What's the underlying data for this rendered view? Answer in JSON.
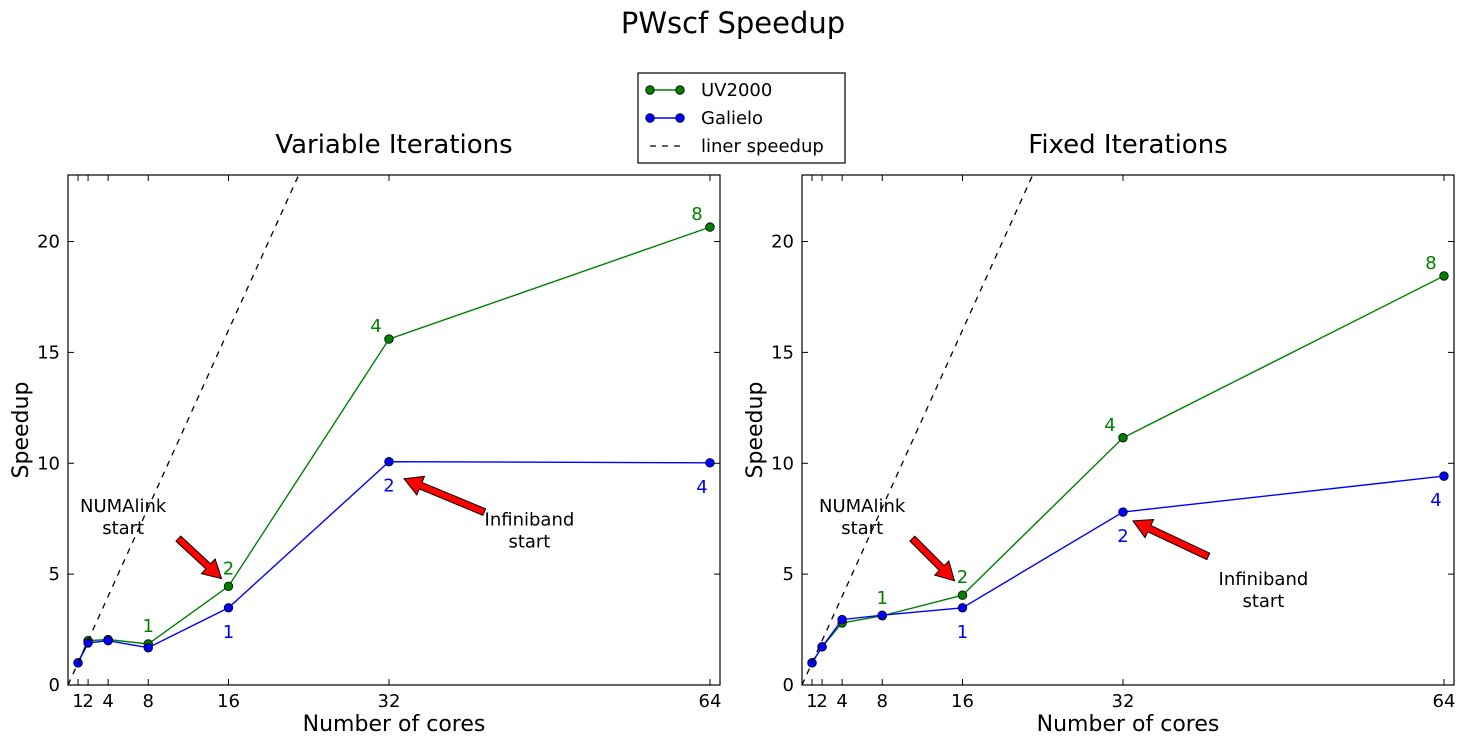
{
  "figure": {
    "title": "PWscf Speedup"
  },
  "legend": {
    "entries": [
      {
        "label": "UV2000",
        "color": "#007f00",
        "style": "line-marker"
      },
      {
        "label": "Galielo",
        "color": "#0000ff",
        "style": "line-marker"
      },
      {
        "label": "liner speedup",
        "color": "#000000",
        "style": "dashed"
      }
    ]
  },
  "chart_data": [
    {
      "type": "line",
      "title": "Variable Iterations",
      "xlabel": "Number of cores",
      "ylabel": "Speedup",
      "xlim": [
        0,
        65
      ],
      "ylim": [
        0,
        23
      ],
      "xticks": [
        1,
        2,
        4,
        8,
        16,
        32,
        64
      ],
      "xtick_labels": [
        "1",
        "2",
        "4",
        "8",
        "16",
        "32",
        "64"
      ],
      "yticks": [
        0,
        5,
        10,
        15,
        20
      ],
      "grid": false,
      "series": [
        {
          "name": "UV2000",
          "color": "#007f00",
          "x": [
            1,
            2,
            4,
            8,
            16,
            32,
            64
          ],
          "y": [
            1.0,
            2.0,
            2.05,
            1.85,
            4.45,
            15.6,
            20.65
          ],
          "point_labels": [
            {
              "x": 8,
              "text": "1",
              "position": "above"
            },
            {
              "x": 16,
              "text": "2",
              "position": "above"
            },
            {
              "x": 32,
              "text": "4",
              "position": "above-left"
            },
            {
              "x": 64,
              "text": "8",
              "position": "above-left"
            }
          ]
        },
        {
          "name": "Galielo",
          "color": "#0000ff",
          "x": [
            1,
            2,
            4,
            8,
            16,
            32,
            64
          ],
          "y": [
            1.0,
            1.9,
            2.0,
            1.68,
            3.48,
            10.07,
            10.02
          ],
          "point_labels": [
            {
              "x": 16,
              "text": "1",
              "position": "below"
            },
            {
              "x": 32,
              "text": "2",
              "position": "below"
            },
            {
              "x": 64,
              "text": "4",
              "position": "below-left"
            }
          ]
        },
        {
          "name": "liner speedup",
          "color": "#000000",
          "style": "dashed",
          "x": [
            0,
            23
          ],
          "y": [
            0,
            23
          ]
        }
      ],
      "annotations": [
        {
          "text_lines": [
            "NUMAlink",
            "start"
          ],
          "text_at": [
            5.5,
            7.8
          ],
          "arrow_from": [
            11,
            6.6
          ],
          "arrow_to": [
            15.3,
            4.8
          ]
        },
        {
          "text_lines": [
            "Infiniband",
            "start"
          ],
          "text_at": [
            46,
            7.2
          ],
          "arrow_from": [
            41.5,
            7.8
          ],
          "arrow_to": [
            33.5,
            9.3
          ]
        }
      ]
    },
    {
      "type": "line",
      "title": "Fixed Iterations",
      "xlabel": "Number of cores",
      "ylabel": "Speedup",
      "xlim": [
        0,
        65
      ],
      "ylim": [
        0,
        23
      ],
      "xticks": [
        1,
        2,
        4,
        8,
        16,
        32,
        64
      ],
      "xtick_labels": [
        "1",
        "2",
        "4",
        "8",
        "16",
        "32",
        "64"
      ],
      "yticks": [
        0,
        5,
        10,
        15,
        20
      ],
      "grid": false,
      "series": [
        {
          "name": "UV2000",
          "color": "#007f00",
          "x": [
            1,
            2,
            4,
            8,
            16,
            32,
            64
          ],
          "y": [
            1.0,
            1.72,
            2.8,
            3.12,
            4.05,
            11.15,
            18.45
          ],
          "point_labels": [
            {
              "x": 8,
              "text": "1",
              "position": "above"
            },
            {
              "x": 16,
              "text": "2",
              "position": "above"
            },
            {
              "x": 32,
              "text": "4",
              "position": "above-left"
            },
            {
              "x": 64,
              "text": "8",
              "position": "above-left"
            }
          ]
        },
        {
          "name": "Galielo",
          "color": "#0000ff",
          "x": [
            1,
            2,
            4,
            8,
            16,
            32,
            64
          ],
          "y": [
            1.0,
            1.72,
            2.95,
            3.15,
            3.48,
            7.8,
            9.42
          ],
          "point_labels": [
            {
              "x": 16,
              "text": "1",
              "position": "below"
            },
            {
              "x": 32,
              "text": "2",
              "position": "below"
            },
            {
              "x": 64,
              "text": "4",
              "position": "below-left"
            }
          ]
        },
        {
          "name": "liner speedup",
          "color": "#000000",
          "style": "dashed",
          "x": [
            0,
            23
          ],
          "y": [
            0,
            23
          ]
        }
      ],
      "annotations": [
        {
          "text_lines": [
            "NUMAlink",
            "start"
          ],
          "text_at": [
            6,
            7.8
          ],
          "arrow_from": [
            11,
            6.6
          ],
          "arrow_to": [
            15.2,
            4.7
          ]
        },
        {
          "text_lines": [
            "Infiniband",
            "start"
          ],
          "text_at": [
            46,
            4.5
          ],
          "arrow_from": [
            40.5,
            5.8
          ],
          "arrow_to": [
            33,
            7.4
          ]
        }
      ]
    }
  ]
}
